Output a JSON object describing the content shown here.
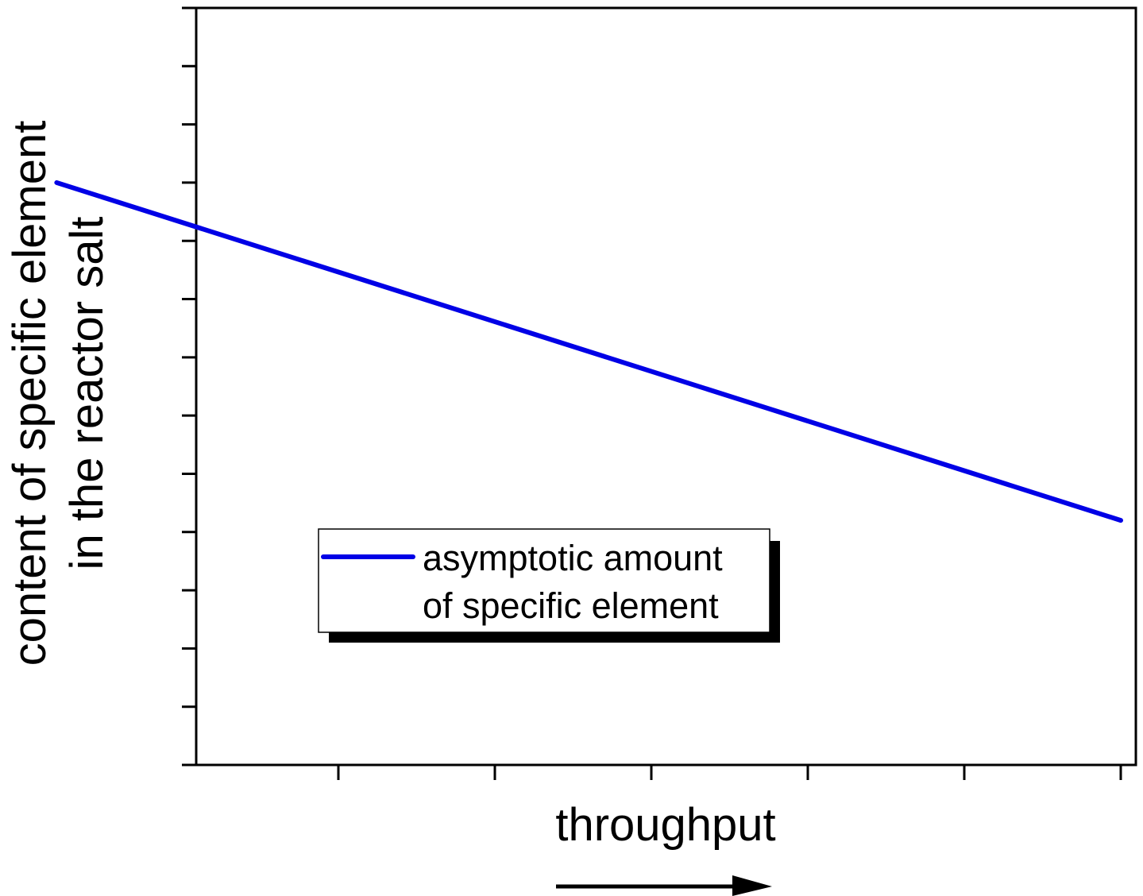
{
  "chart_data": {
    "type": "line",
    "title": "",
    "xlabel": "throughput",
    "ylabel_lines": [
      "content of specific element",
      "in the reactor salt"
    ],
    "x_ticks": 6,
    "y_ticks": 13,
    "xlim": [
      0,
      6
    ],
    "ylim": [
      0,
      13
    ],
    "tick_labels_shown": false,
    "grid": false,
    "legend_position": "bottom-left",
    "series": [
      {
        "name_lines": [
          "asymptotic amount",
          "of specific element"
        ],
        "color": "#0000e6",
        "x": [
          -0.8,
          6
        ],
        "y": [
          10,
          4.2
        ]
      }
    ],
    "annotations": [
      {
        "type": "arrow",
        "direction": "right",
        "meaning": "increasing throughput"
      }
    ]
  }
}
